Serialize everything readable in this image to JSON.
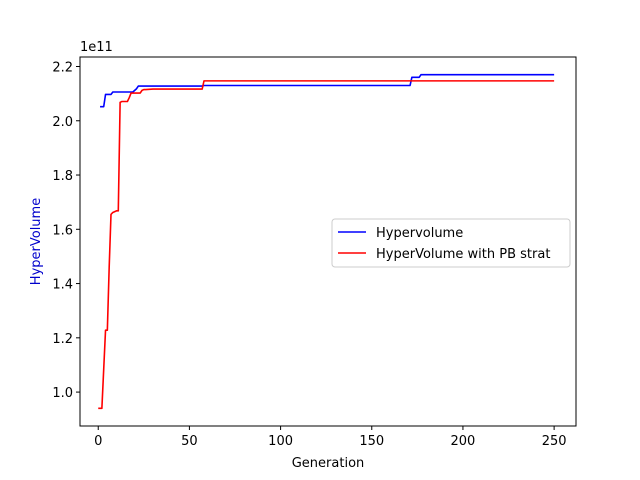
{
  "chart_data": {
    "type": "line",
    "title": "",
    "xlabel": "Generation",
    "ylabel": "HyperVolume",
    "ylabel_color": "#0000cc",
    "offset_text": "1e11",
    "xlim": [
      -10,
      262
    ],
    "ylim": [
      0.875,
      2.235
    ],
    "xticks": [
      0,
      50,
      100,
      150,
      200,
      250
    ],
    "yticks": [
      1.0,
      1.2,
      1.4,
      1.6,
      1.8,
      2.0,
      2.2
    ],
    "ytick_labels": [
      "1.0",
      "1.2",
      "1.4",
      "1.6",
      "1.8",
      "2.0",
      "2.2"
    ],
    "grid": false,
    "legend_position": "center-right",
    "series": [
      {
        "name": "Hypervolume",
        "color": "#0000ff",
        "x": [
          1,
          3,
          4,
          7,
          8,
          19,
          21,
          22,
          57,
          58,
          171,
          172,
          176,
          177,
          250
        ],
        "y": [
          2.052,
          2.052,
          2.097,
          2.097,
          2.106,
          2.106,
          2.118,
          2.128,
          2.128,
          2.13,
          2.13,
          2.16,
          2.16,
          2.17,
          2.17
        ]
      },
      {
        "name": "HyperVolume with PB strat",
        "color": "#ff0000",
        "x": [
          0,
          2,
          4,
          5,
          6,
          7,
          8,
          10,
          11,
          12,
          13,
          16,
          17,
          18,
          19,
          23,
          24,
          25,
          26,
          30,
          57,
          58,
          59,
          250
        ],
        "y": [
          0.94,
          0.94,
          1.228,
          1.228,
          1.46,
          1.655,
          1.662,
          1.668,
          1.668,
          2.068,
          2.071,
          2.071,
          2.085,
          2.102,
          2.102,
          2.102,
          2.112,
          2.115,
          2.115,
          2.117,
          2.117,
          2.147,
          2.147,
          2.147
        ]
      }
    ]
  }
}
